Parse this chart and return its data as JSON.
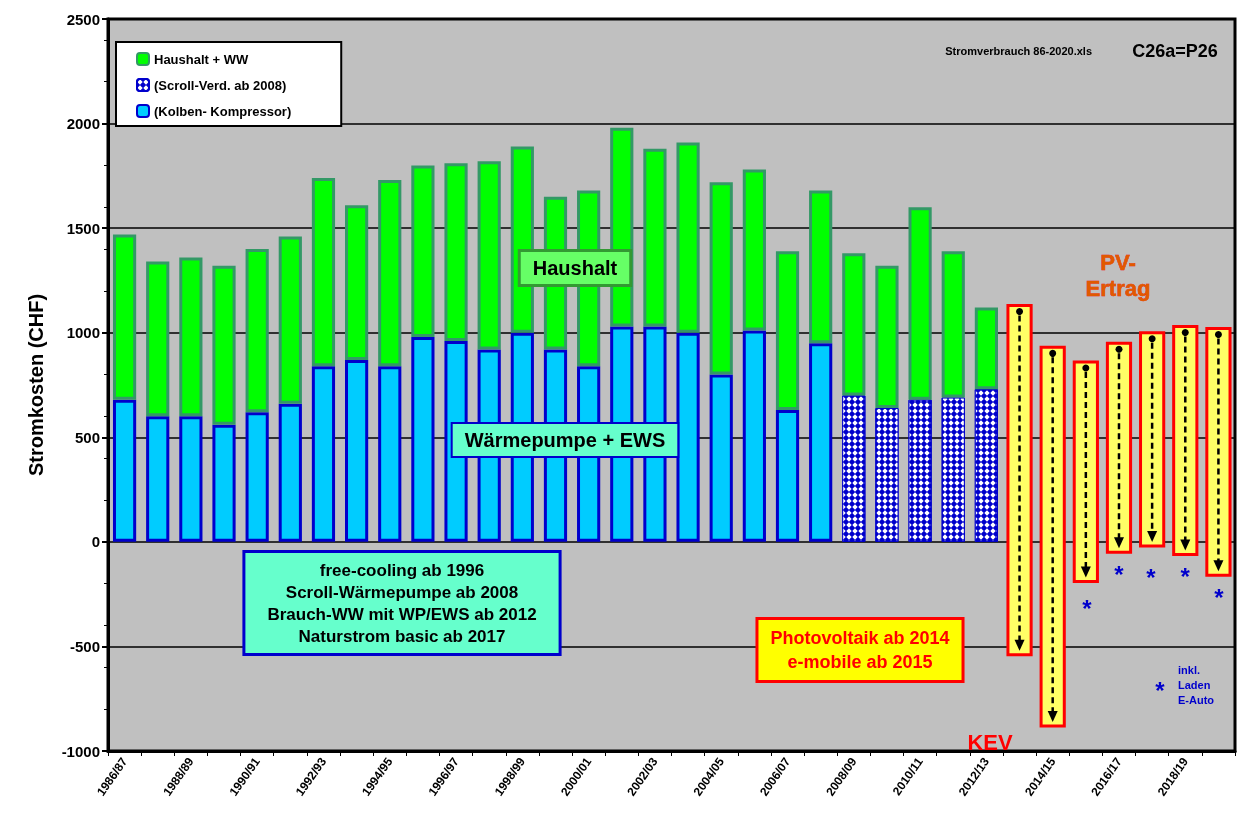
{
  "chart_data": {
    "type": "bar",
    "stacked": true,
    "ylabel": "Stromkosten (CHF)",
    "categories": [
      "1986/87",
      null,
      "1988/89",
      null,
      "1990/91",
      null,
      "1992/93",
      null,
      "1994/95",
      null,
      "1996/97",
      null,
      "1998/99",
      null,
      "2000/01",
      null,
      "2002/03",
      null,
      "2004/05",
      null,
      "2006/07",
      null,
      "2008/09",
      null,
      "2010/11",
      null,
      "2012/13",
      null,
      "2014/15",
      null,
      "2016/17",
      null,
      "2018/19",
      null
    ],
    "series": [
      {
        "name": "(Kolben- Kompressor)",
        "color": "#00ccff",
        "values": [
          680,
          600,
          600,
          560,
          620,
          660,
          840,
          870,
          840,
          980,
          960,
          920,
          1000,
          920,
          840,
          1030,
          1030,
          1000,
          800,
          1010,
          630,
          950,
          null,
          null,
          null,
          null,
          null,
          null,
          null,
          null,
          null,
          null,
          null,
          null
        ]
      },
      {
        "name": "(Scroll-Verd. ab 2008)",
        "color": "#0000cc",
        "values": [
          null,
          null,
          null,
          null,
          null,
          null,
          null,
          null,
          null,
          null,
          null,
          null,
          null,
          null,
          null,
          null,
          null,
          null,
          null,
          null,
          null,
          null,
          700,
          640,
          680,
          690,
          730,
          null,
          null,
          null,
          null,
          null,
          null,
          null
        ]
      },
      {
        "name": "Haushalt + WW",
        "color": "#00ff00",
        "values": [
          790,
          740,
          760,
          760,
          780,
          800,
          900,
          740,
          890,
          820,
          850,
          900,
          890,
          730,
          840,
          950,
          850,
          910,
          920,
          770,
          760,
          730,
          680,
          680,
          920,
          700,
          390,
          null,
          null,
          null,
          null,
          null,
          null,
          null
        ]
      },
      {
        "color": "#ffff66",
        "base": [
          null,
          null,
          null,
          null,
          null,
          null,
          null,
          null,
          null,
          null,
          null,
          null,
          null,
          null,
          null,
          null,
          null,
          null,
          null,
          null,
          null,
          null,
          null,
          null,
          null,
          null,
          null,
          -540,
          -880,
          -190,
          -50,
          -20,
          -60,
          -160
        ],
        "values": [
          null,
          null,
          null,
          null,
          null,
          null,
          null,
          null,
          null,
          null,
          null,
          null,
          null,
          null,
          null,
          null,
          null,
          null,
          null,
          null,
          null,
          null,
          null,
          null,
          null,
          null,
          null,
          1670,
          1810,
          1050,
          1000,
          1020,
          1090,
          1180
        ]
      }
    ],
    "ylim": [
      -1000,
      2500
    ],
    "yticks": [
      -1000,
      -500,
      0,
      500,
      1000,
      1500,
      2000,
      2500
    ],
    "grid": "y",
    "legend": "top left",
    "annotations": [
      "Haushalt",
      "Wärmepumpe + EWS",
      "PV-\nErtrag",
      "KEV",
      "free-cooling ab 1996\nScroll-Wärmepumpe ab 2008\nBrauch-WW mit WP/EWS ab 2012\nNaturstrom basic ab 2017",
      "Photovoltaik ab 2014\ne-mobile ab 2015",
      "*",
      "inkl.\nLaden\nE-Auto",
      "Stromverbrauch 86-2020.xls",
      "C26a=P26",
      "*",
      {
        "text": "*",
        "x": "2016/17",
        "y": -50
      },
      "*",
      {
        "text": "*",
        "x": "2018/19",
        "y": -60
      },
      "*"
    ]
  }
}
